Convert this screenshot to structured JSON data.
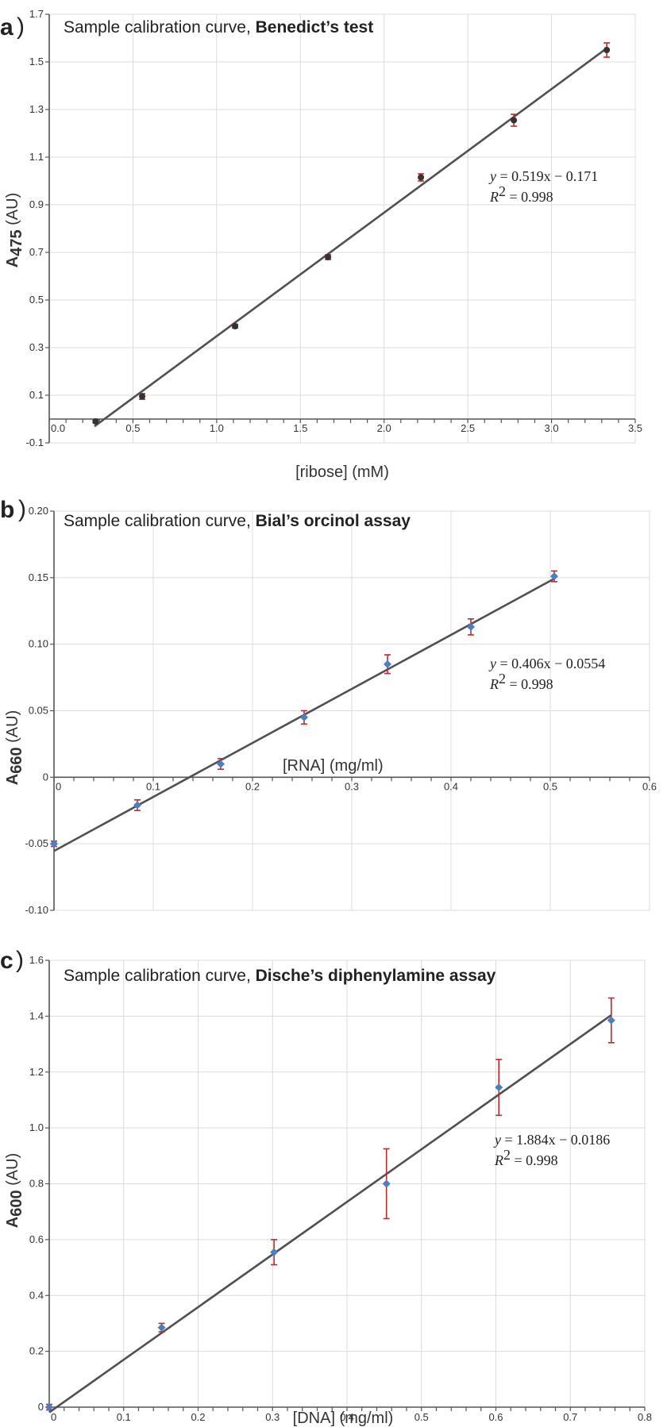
{
  "chart_data": [
    {
      "type": "scatter",
      "panel": "a",
      "title": "Sample calibration curve,",
      "title_bold": "Benedict’s test",
      "xlabel": "[ribose] (mM)",
      "ylabel_main": "A",
      "ylabel_sub": "475",
      "ylabel_unit": "(AU)",
      "xlim": [
        0,
        3.5
      ],
      "ylim": [
        -0.1,
        1.7
      ],
      "xticks": [
        0.0,
        0.5,
        1.0,
        1.5,
        2.0,
        2.5,
        3.0,
        3.5
      ],
      "xtick_labels": [
        "0.0",
        "0.5",
        "1.0",
        "1.5",
        "2.0",
        "2.5",
        "3.0",
        "3.5"
      ],
      "yticks": [
        -0.1,
        0.1,
        0.3,
        0.5,
        0.7,
        0.9,
        1.1,
        1.3,
        1.5,
        1.7
      ],
      "ytick_labels": [
        "-0.1",
        "0.1",
        "0.3",
        "0.5",
        "0.7",
        "0.9",
        "1.1",
        "1.3",
        "1.5",
        "1.7"
      ],
      "x_axis_at": 0,
      "marker": "circle",
      "marker_color": "#333333",
      "points": {
        "x": [
          0.277,
          0.555,
          1.11,
          1.665,
          2.22,
          2.775,
          3.33
        ],
        "y": [
          -0.01,
          0.095,
          0.39,
          0.68,
          1.015,
          1.255,
          1.55
        ],
        "err": [
          0.006,
          0.012,
          0.008,
          0.01,
          0.015,
          0.025,
          0.03
        ]
      },
      "fit": {
        "slope": 0.519,
        "intercept": -0.171,
        "x_range": [
          0.27,
          3.33
        ]
      },
      "equation_y": "y",
      "equation": "= 0.519x − 0.171",
      "r2_label": "R",
      "r2_sup": "2",
      "r2_value": "= 0.998"
    },
    {
      "type": "scatter",
      "panel": "b",
      "title": "Sample calibration curve,",
      "title_bold": "Bial’s orcinol assay",
      "xlabel": "[RNA] (mg/ml)",
      "ylabel_main": "A",
      "ylabel_sub": "660",
      "ylabel_unit": "(AU)",
      "xlim": [
        0,
        0.6
      ],
      "ylim": [
        -0.1,
        0.2
      ],
      "xticks": [
        0,
        0.1,
        0.2,
        0.3,
        0.4,
        0.5,
        0.6
      ],
      "xtick_labels": [
        "0",
        "0.1",
        "0.2",
        "0.3",
        "0.4",
        "0.5",
        "0.6"
      ],
      "yticks": [
        -0.1,
        -0.05,
        0,
        0.05,
        0.1,
        0.15,
        0.2
      ],
      "ytick_labels": [
        "-0.10",
        "-0.05",
        "0",
        "0.05",
        "0.10",
        "0.15",
        "0.20"
      ],
      "x_axis_at": 0,
      "marker": "diamond",
      "marker_color": "#4a7fc1",
      "points": {
        "x": [
          0,
          0.084,
          0.168,
          0.252,
          0.336,
          0.42,
          0.504
        ],
        "y": [
          -0.05,
          -0.021,
          0.01,
          0.045,
          0.085,
          0.113,
          0.151
        ],
        "err": [
          0.002,
          0.004,
          0.004,
          0.005,
          0.007,
          0.006,
          0.004
        ]
      },
      "fit": {
        "slope": 0.406,
        "intercept": -0.0554,
        "x_range": [
          0,
          0.504
        ]
      },
      "equation_y": "y",
      "equation": "= 0.406x − 0.0554",
      "r2_label": "R",
      "r2_sup": "2",
      "r2_value": "= 0.998"
    },
    {
      "type": "scatter",
      "panel": "c",
      "title": "Sample calibration curve,",
      "title_bold": "Dische’s diphenylamine assay",
      "xlabel": "[DNA] (mg/ml)",
      "ylabel_main": "A",
      "ylabel_sub": "600",
      "ylabel_unit": "(AU)",
      "xlim": [
        0,
        0.8
      ],
      "ylim": [
        0,
        1.6
      ],
      "xticks": [
        0,
        0.1,
        0.2,
        0.3,
        0.4,
        0.5,
        0.6,
        0.7,
        0.8
      ],
      "xtick_labels": [
        "0",
        "0.1",
        "0.2",
        "0.3",
        "0.4",
        "0.5",
        "0.6",
        "0.7",
        "0.8"
      ],
      "yticks": [
        0,
        0.2,
        0.4,
        0.6,
        0.8,
        1.0,
        1.2,
        1.4,
        1.6
      ],
      "ytick_labels": [
        "0",
        "0.2",
        "0.4",
        "0.6",
        "0.8",
        "1.0",
        "1.2",
        "1.4",
        "1.6"
      ],
      "x_axis_at": 0,
      "marker": "diamond",
      "marker_color": "#4a7fc1",
      "points": {
        "x": [
          0,
          0.151,
          0.302,
          0.453,
          0.604,
          0.755
        ],
        "y": [
          0,
          0.285,
          0.555,
          0.8,
          1.145,
          1.385
        ],
        "err": [
          0.01,
          0.015,
          0.045,
          0.125,
          0.1,
          0.08
        ]
      },
      "fit": {
        "slope": 1.884,
        "intercept": -0.0186,
        "x_range": [
          0,
          0.755
        ]
      },
      "equation_y": "y",
      "equation": "= 1.884x − 0.0186",
      "r2_label": "R",
      "r2_sup": "2",
      "r2_value": "= 0.998"
    }
  ]
}
